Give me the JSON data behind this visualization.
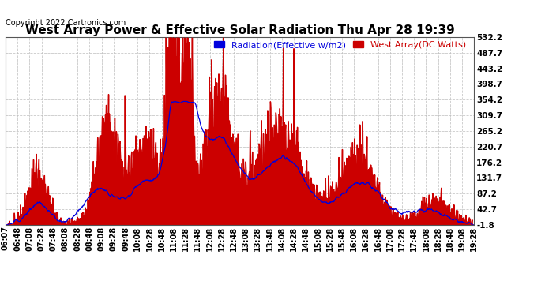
{
  "title": "West Array Power & Effective Solar Radiation Thu Apr 28 19:39",
  "copyright": "Copyright 2022 Cartronics.com",
  "legend_radiation": "Radiation(Effective w/m2)",
  "legend_west": "West Array(DC Watts)",
  "y_ticks": [
    532.2,
    487.7,
    443.2,
    398.7,
    354.2,
    309.7,
    265.2,
    220.7,
    176.2,
    131.7,
    87.2,
    42.7,
    -1.8
  ],
  "y_min": -1.8,
  "y_max": 532.2,
  "background_color": "#ffffff",
  "grid_color": "#bbbbbb",
  "radiation_color": "#0000dd",
  "west_array_color": "#cc0000",
  "west_array_fill": "#cc0000",
  "title_fontsize": 11,
  "copyright_fontsize": 7,
  "legend_fontsize": 8,
  "tick_fontsize": 7.5,
  "x_labels": [
    "06:07",
    "06:48",
    "07:08",
    "07:28",
    "07:48",
    "08:08",
    "08:28",
    "08:48",
    "09:08",
    "09:28",
    "09:48",
    "10:08",
    "10:28",
    "10:48",
    "11:08",
    "11:28",
    "11:48",
    "12:08",
    "12:28",
    "12:48",
    "13:08",
    "13:28",
    "13:48",
    "14:08",
    "14:28",
    "14:48",
    "15:08",
    "15:28",
    "15:48",
    "16:08",
    "16:28",
    "16:48",
    "17:08",
    "17:28",
    "17:48",
    "18:08",
    "18:28",
    "18:48",
    "19:08",
    "19:28"
  ]
}
